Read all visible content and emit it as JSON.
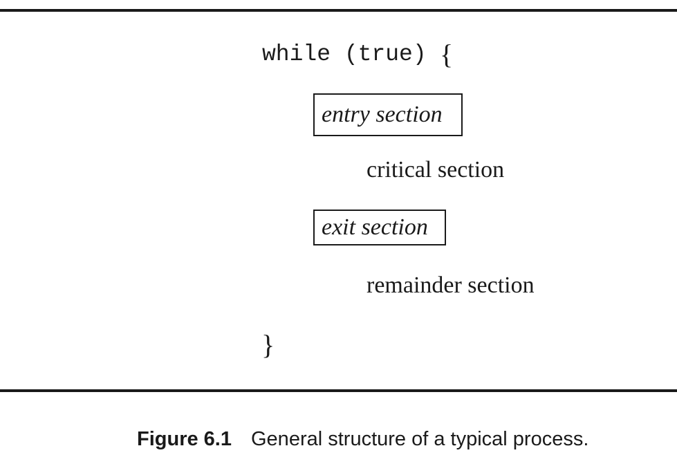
{
  "code": {
    "while_keyword": "while (true)",
    "open_brace": "{",
    "entry_section": "entry section",
    "critical_section": "critical section",
    "exit_section": "exit section",
    "remainder_section": "remainder section",
    "close_brace": "}"
  },
  "caption": {
    "label": "Figure 6.1",
    "text": "General structure of a typical process."
  }
}
